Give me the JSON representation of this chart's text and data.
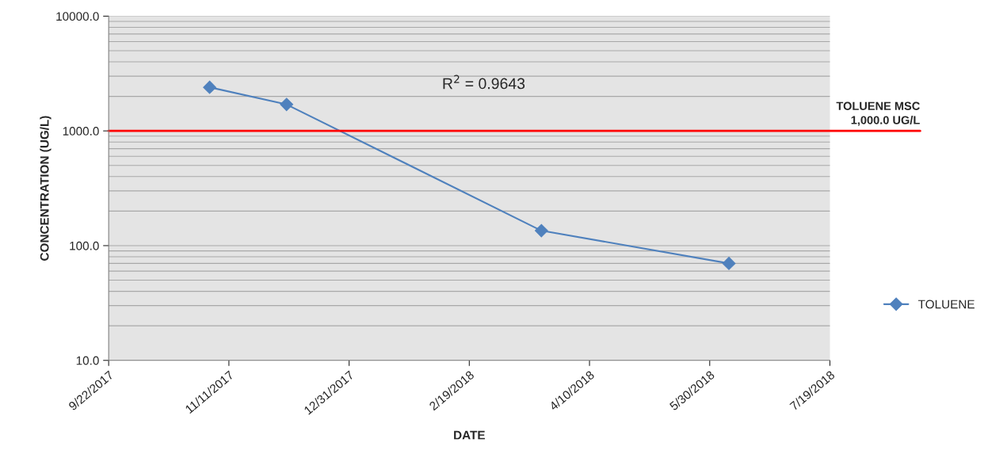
{
  "chart_data": {
    "type": "line",
    "xlabel": "DATE",
    "ylabel": "CONCENTRATION (UG/L)",
    "x": [
      "2017-11-03",
      "2017-12-05",
      "2018-03-21",
      "2018-06-07"
    ],
    "series": [
      {
        "name": "TOLUENE",
        "color": "#4f81bd",
        "values": [
          2400,
          1700,
          135,
          70
        ]
      }
    ],
    "log": "y",
    "ylim": [
      10,
      10000
    ],
    "yticks": [
      {
        "value": 10,
        "label": "10.0"
      },
      {
        "value": 100,
        "label": "100.0"
      },
      {
        "value": 1000,
        "label": "1000.0"
      },
      {
        "value": 10000,
        "label": "10000.0"
      }
    ],
    "xlim": [
      "2017-09-22",
      "2018-07-19"
    ],
    "xticks": [
      {
        "value": "2017-09-22",
        "label": "9/22/2017"
      },
      {
        "value": "2017-11-11",
        "label": "11/11/2017"
      },
      {
        "value": "2017-12-31",
        "label": "12/31/2017"
      },
      {
        "value": "2018-02-19",
        "label": "2/19/2018"
      },
      {
        "value": "2018-04-10",
        "label": "4/10/2018"
      },
      {
        "value": "2018-05-30",
        "label": "5/30/2018"
      },
      {
        "value": "2018-07-19",
        "label": "7/19/2018"
      }
    ],
    "ref_lines": [
      {
        "axis": "y",
        "value": 1000,
        "label": "TOLUENE MSC\n1,000.0 UG/L",
        "color": "#ff0000"
      }
    ],
    "annotations": [
      "R$^{2}$ = 0.9643"
    ],
    "grid": "y",
    "legend": "right",
    "marker": "diamond",
    "line_style": "solid"
  }
}
